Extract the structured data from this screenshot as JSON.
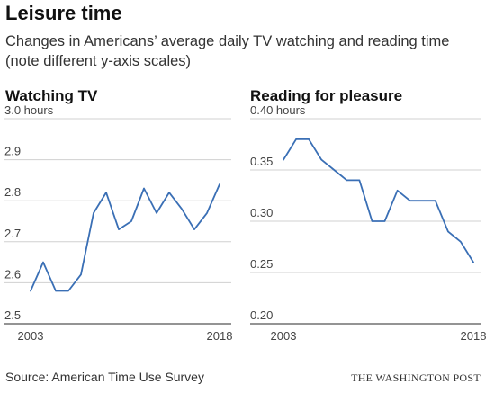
{
  "title": "Leisure time",
  "subtitle": "Changes in Americans’ average daily TV watching and reading time (note different y-axis scales)",
  "source": "Source: American Time Use Survey",
  "credit": "THE WASHINGTON POST",
  "colors": {
    "line": "#3a6fb5",
    "grid": "#d0d0d0",
    "axis": "#555555"
  },
  "chart_data": [
    {
      "type": "line",
      "title": "Watching TV",
      "x": [
        2003,
        2004,
        2005,
        2006,
        2007,
        2008,
        2009,
        2010,
        2011,
        2012,
        2013,
        2014,
        2015,
        2016,
        2017,
        2018
      ],
      "series": [
        {
          "values": [
            2.58,
            2.65,
            2.58,
            2.58,
            2.62,
            2.77,
            2.82,
            2.73,
            2.75,
            2.83,
            2.77,
            2.82,
            2.78,
            2.73,
            2.77,
            2.84
          ]
        }
      ],
      "ylim": [
        2.5,
        3.0
      ],
      "yticks": [
        2.5,
        2.6,
        2.7,
        2.8,
        2.9,
        3.0
      ],
      "ytick_labels": [
        "2.5",
        "2.6",
        "2.7",
        "2.8",
        "2.9",
        "3.0 hours"
      ],
      "xtick_labels": [
        "2003",
        "2018"
      ],
      "grid": true
    },
    {
      "type": "line",
      "title": "Reading for pleasure",
      "x": [
        2003,
        2004,
        2005,
        2006,
        2007,
        2008,
        2009,
        2010,
        2011,
        2012,
        2013,
        2014,
        2015,
        2016,
        2017,
        2018
      ],
      "series": [
        {
          "values": [
            0.36,
            0.38,
            0.38,
            0.36,
            0.35,
            0.34,
            0.34,
            0.3,
            0.3,
            0.33,
            0.32,
            0.32,
            0.32,
            0.29,
            0.28,
            0.26
          ]
        }
      ],
      "ylim": [
        0.2,
        0.4
      ],
      "yticks": [
        0.2,
        0.25,
        0.3,
        0.35,
        0.4
      ],
      "ytick_labels": [
        "0.20",
        "0.25",
        "0.30",
        "0.35",
        "0.40 hours"
      ],
      "xtick_labels": [
        "2003",
        "2018"
      ],
      "grid": true
    }
  ]
}
